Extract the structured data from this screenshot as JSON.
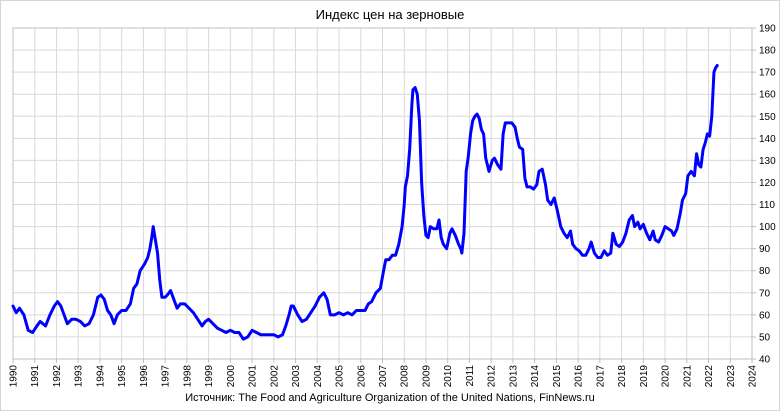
{
  "chart_data": {
    "type": "line",
    "title": "Индекс цен на зерновые",
    "source": "Источник: The Food and Agriculture Organization of the United Nations, FinNews.ru",
    "xlabel": "",
    "ylabel": "",
    "xlim": [
      1990,
      2024
    ],
    "ylim": [
      40,
      190
    ],
    "y_axis_position": "right",
    "grid": true,
    "legend": "none",
    "x_ticks": [
      "1990",
      "1991",
      "1992",
      "1993",
      "1994",
      "1995",
      "1996",
      "1997",
      "1998",
      "1999",
      "2000",
      "2001",
      "2002",
      "2003",
      "2004",
      "2005",
      "2006",
      "2007",
      "2008",
      "2009",
      "2010",
      "2011",
      "2012",
      "2013",
      "2014",
      "2015",
      "2016",
      "2017",
      "2018",
      "2019",
      "2020",
      "2021",
      "2022",
      "2023",
      "2024"
    ],
    "y_ticks": [
      "40",
      "50",
      "60",
      "70",
      "80",
      "90",
      "100",
      "110",
      "120",
      "130",
      "140",
      "150",
      "160",
      "170",
      "180",
      "190"
    ],
    "series": [
      {
        "color": "#0000ff",
        "points": [
          [
            1990.0,
            64
          ],
          [
            1990.15,
            61
          ],
          [
            1990.3,
            63
          ],
          [
            1990.5,
            60
          ],
          [
            1990.7,
            53
          ],
          [
            1990.9,
            52
          ],
          [
            1991.1,
            55
          ],
          [
            1991.25,
            57
          ],
          [
            1991.5,
            55
          ],
          [
            1991.7,
            60
          ],
          [
            1991.9,
            64
          ],
          [
            1992.05,
            66
          ],
          [
            1992.2,
            64
          ],
          [
            1992.35,
            60
          ],
          [
            1992.5,
            56
          ],
          [
            1992.7,
            58
          ],
          [
            1992.9,
            58
          ],
          [
            1993.1,
            57
          ],
          [
            1993.3,
            55
          ],
          [
            1993.5,
            56
          ],
          [
            1993.7,
            60
          ],
          [
            1993.9,
            68
          ],
          [
            1994.05,
            69
          ],
          [
            1994.2,
            67
          ],
          [
            1994.35,
            62
          ],
          [
            1994.5,
            60
          ],
          [
            1994.65,
            56
          ],
          [
            1994.8,
            60
          ],
          [
            1995.0,
            62
          ],
          [
            1995.2,
            62
          ],
          [
            1995.4,
            65
          ],
          [
            1995.55,
            72
          ],
          [
            1995.7,
            74
          ],
          [
            1995.85,
            80
          ],
          [
            1996.05,
            83
          ],
          [
            1996.2,
            86
          ],
          [
            1996.3,
            90
          ],
          [
            1996.4,
            96
          ],
          [
            1996.45,
            100
          ],
          [
            1996.55,
            94
          ],
          [
            1996.65,
            88
          ],
          [
            1996.75,
            76
          ],
          [
            1996.85,
            68
          ],
          [
            1997.0,
            68
          ],
          [
            1997.1,
            69
          ],
          [
            1997.25,
            71
          ],
          [
            1997.4,
            67
          ],
          [
            1997.55,
            63
          ],
          [
            1997.7,
            65
          ],
          [
            1997.9,
            65
          ],
          [
            1998.1,
            63
          ],
          [
            1998.3,
            61
          ],
          [
            1998.5,
            58
          ],
          [
            1998.7,
            55
          ],
          [
            1998.85,
            57
          ],
          [
            1999.0,
            58
          ],
          [
            1999.2,
            56
          ],
          [
            1999.4,
            54
          ],
          [
            1999.6,
            53
          ],
          [
            1999.8,
            52
          ],
          [
            2000.0,
            53
          ],
          [
            2000.2,
            52
          ],
          [
            2000.4,
            52
          ],
          [
            2000.6,
            49
          ],
          [
            2000.8,
            50
          ],
          [
            2001.0,
            53
          ],
          [
            2001.2,
            52
          ],
          [
            2001.4,
            51
          ],
          [
            2001.6,
            51
          ],
          [
            2001.8,
            51
          ],
          [
            2002.0,
            51
          ],
          [
            2002.2,
            50
          ],
          [
            2002.4,
            51
          ],
          [
            2002.55,
            55
          ],
          [
            2002.7,
            60
          ],
          [
            2002.8,
            64
          ],
          [
            2002.9,
            64
          ],
          [
            2003.1,
            60
          ],
          [
            2003.3,
            57
          ],
          [
            2003.5,
            58
          ],
          [
            2003.7,
            61
          ],
          [
            2003.9,
            64
          ],
          [
            2004.1,
            68
          ],
          [
            2004.3,
            70
          ],
          [
            2004.45,
            67
          ],
          [
            2004.6,
            60
          ],
          [
            2004.8,
            60
          ],
          [
            2005.0,
            61
          ],
          [
            2005.2,
            60
          ],
          [
            2005.4,
            61
          ],
          [
            2005.6,
            60
          ],
          [
            2005.8,
            62
          ],
          [
            2006.0,
            62
          ],
          [
            2006.2,
            62
          ],
          [
            2006.35,
            65
          ],
          [
            2006.5,
            66
          ],
          [
            2006.7,
            70
          ],
          [
            2006.9,
            72
          ],
          [
            2007.05,
            80
          ],
          [
            2007.15,
            85
          ],
          [
            2007.3,
            85
          ],
          [
            2007.45,
            87
          ],
          [
            2007.6,
            87
          ],
          [
            2007.75,
            92
          ],
          [
            2007.9,
            100
          ],
          [
            2008.0,
            110
          ],
          [
            2008.05,
            118
          ],
          [
            2008.15,
            123
          ],
          [
            2008.25,
            135
          ],
          [
            2008.35,
            155
          ],
          [
            2008.4,
            162
          ],
          [
            2008.5,
            163
          ],
          [
            2008.6,
            160
          ],
          [
            2008.7,
            148
          ],
          [
            2008.8,
            120
          ],
          [
            2008.9,
            105
          ],
          [
            2009.0,
            96
          ],
          [
            2009.1,
            95
          ],
          [
            2009.2,
            100
          ],
          [
            2009.35,
            99
          ],
          [
            2009.5,
            99
          ],
          [
            2009.6,
            103
          ],
          [
            2009.7,
            95
          ],
          [
            2009.8,
            92
          ],
          [
            2009.95,
            90
          ],
          [
            2010.1,
            97
          ],
          [
            2010.2,
            99
          ],
          [
            2010.35,
            96
          ],
          [
            2010.5,
            92
          ],
          [
            2010.6,
            90
          ],
          [
            2010.65,
            88
          ],
          [
            2010.75,
            97
          ],
          [
            2010.85,
            125
          ],
          [
            2010.95,
            132
          ],
          [
            2011.05,
            142
          ],
          [
            2011.15,
            148
          ],
          [
            2011.25,
            150
          ],
          [
            2011.35,
            151
          ],
          [
            2011.45,
            149
          ],
          [
            2011.55,
            144
          ],
          [
            2011.65,
            142
          ],
          [
            2011.75,
            131
          ],
          [
            2011.9,
            125
          ],
          [
            2012.05,
            130
          ],
          [
            2012.15,
            131
          ],
          [
            2012.3,
            128
          ],
          [
            2012.45,
            126
          ],
          [
            2012.55,
            142
          ],
          [
            2012.65,
            147
          ],
          [
            2012.8,
            147
          ],
          [
            2012.95,
            147
          ],
          [
            2013.1,
            145
          ],
          [
            2013.2,
            140
          ],
          [
            2013.3,
            136
          ],
          [
            2013.45,
            135
          ],
          [
            2013.55,
            122
          ],
          [
            2013.65,
            118
          ],
          [
            2013.8,
            118
          ],
          [
            2013.95,
            117
          ],
          [
            2014.1,
            119
          ],
          [
            2014.2,
            125
          ],
          [
            2014.35,
            126
          ],
          [
            2014.5,
            119
          ],
          [
            2014.6,
            112
          ],
          [
            2014.75,
            110
          ],
          [
            2014.9,
            113
          ],
          [
            2015.05,
            107
          ],
          [
            2015.2,
            100
          ],
          [
            2015.35,
            97
          ],
          [
            2015.5,
            95
          ],
          [
            2015.65,
            98
          ],
          [
            2015.75,
            92
          ],
          [
            2015.9,
            90
          ],
          [
            2016.05,
            89
          ],
          [
            2016.2,
            87
          ],
          [
            2016.35,
            87
          ],
          [
            2016.5,
            90
          ],
          [
            2016.6,
            93
          ],
          [
            2016.75,
            88
          ],
          [
            2016.9,
            86
          ],
          [
            2017.05,
            86
          ],
          [
            2017.2,
            89
          ],
          [
            2017.35,
            87
          ],
          [
            2017.5,
            88
          ],
          [
            2017.6,
            97
          ],
          [
            2017.75,
            92
          ],
          [
            2017.9,
            91
          ],
          [
            2018.05,
            93
          ],
          [
            2018.2,
            97
          ],
          [
            2018.35,
            103
          ],
          [
            2018.5,
            105
          ],
          [
            2018.6,
            100
          ],
          [
            2018.75,
            102
          ],
          [
            2018.85,
            99
          ],
          [
            2019.0,
            101
          ],
          [
            2019.15,
            97
          ],
          [
            2019.3,
            94
          ],
          [
            2019.45,
            98
          ],
          [
            2019.55,
            94
          ],
          [
            2019.7,
            93
          ],
          [
            2019.85,
            96
          ],
          [
            2020.0,
            100
          ],
          [
            2020.15,
            99
          ],
          [
            2020.3,
            98
          ],
          [
            2020.4,
            96
          ],
          [
            2020.55,
            99
          ],
          [
            2020.7,
            106
          ],
          [
            2020.8,
            112
          ],
          [
            2020.95,
            115
          ],
          [
            2021.05,
            123
          ],
          [
            2021.2,
            125
          ],
          [
            2021.35,
            123
          ],
          [
            2021.45,
            133
          ],
          [
            2021.55,
            128
          ],
          [
            2021.65,
            127
          ],
          [
            2021.75,
            135
          ],
          [
            2021.85,
            138
          ],
          [
            2021.95,
            142
          ],
          [
            2022.05,
            141
          ],
          [
            2022.15,
            150
          ],
          [
            2022.25,
            170
          ],
          [
            2022.33,
            172
          ],
          [
            2022.4,
            173
          ]
        ]
      }
    ]
  }
}
